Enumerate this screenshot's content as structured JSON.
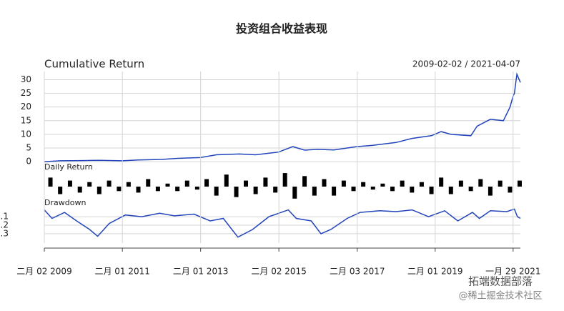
{
  "title": "投资组合收益表现",
  "watermarks": [
    "拓端数据部落",
    "@稀土掘金技术社区"
  ],
  "chart_data": [
    {
      "type": "line",
      "title": "Cumulative Return",
      "subtitle": "2009-02-02 / 2021-04-07",
      "color": "#2244bb",
      "grid": true,
      "xlim": [
        "2009-02-02",
        "2021-04-07"
      ],
      "ylim": [
        -0.5,
        33
      ],
      "yticks": [
        0,
        5,
        10,
        15,
        20,
        25,
        30
      ],
      "x": [
        "2009-02-02",
        "2009-06-30",
        "2010-01-29",
        "2010-06-30",
        "2011-01-31",
        "2011-06-30",
        "2012-01-31",
        "2012-06-29",
        "2013-01-31",
        "2013-06-28",
        "2014-01-30",
        "2014-06-30",
        "2015-01-30",
        "2015-06-12",
        "2015-09-30",
        "2016-01-29",
        "2016-06-30",
        "2017-01-26",
        "2017-06-30",
        "2018-01-31",
        "2018-06-29",
        "2018-12-28",
        "2019-03-29",
        "2019-06-28",
        "2019-12-31",
        "2020-02-28",
        "2020-06-30",
        "2020-10-30",
        "2020-12-31",
        "2021-01-29",
        "2021-02-10",
        "2021-03-05",
        "2021-04-07"
      ],
      "values": [
        0,
        0.3,
        0.4,
        0.5,
        0.3,
        0.6,
        0.8,
        1.2,
        1.5,
        2.5,
        2.8,
        2.5,
        3.5,
        5.5,
        4.2,
        4.5,
        4.3,
        5.5,
        6,
        7,
        8.5,
        9.5,
        11,
        10,
        9.5,
        13,
        15.5,
        15,
        20,
        24,
        25,
        32,
        29
      ]
    },
    {
      "type": "bar",
      "title": "Daily Return",
      "color": "#000000",
      "xlim": [
        "2009-02-02",
        "2021-04-07"
      ],
      "ylim": [
        -0.1,
        0.1
      ],
      "x": [
        "2009-03-31",
        "2009-06-30",
        "2009-09-30",
        "2009-12-31",
        "2010-03-31",
        "2010-06-30",
        "2010-09-30",
        "2010-12-31",
        "2011-03-31",
        "2011-06-30",
        "2011-09-30",
        "2011-12-30",
        "2012-03-30",
        "2012-06-29",
        "2012-09-28",
        "2012-12-31",
        "2013-03-29",
        "2013-06-28",
        "2013-09-30",
        "2013-12-31",
        "2014-03-31",
        "2014-06-30",
        "2014-09-30",
        "2014-12-31",
        "2015-03-31",
        "2015-06-30",
        "2015-09-30",
        "2015-12-31",
        "2016-03-31",
        "2016-06-30",
        "2016-09-30",
        "2016-12-30",
        "2017-03-31",
        "2017-06-30",
        "2017-09-29",
        "2017-12-29",
        "2018-03-30",
        "2018-06-29",
        "2018-09-28",
        "2018-12-28",
        "2019-03-29",
        "2019-06-28",
        "2019-09-30",
        "2019-12-31",
        "2020-03-31",
        "2020-06-30",
        "2020-09-30",
        "2020-12-31",
        "2021-03-31"
      ],
      "values": [
        0.06,
        -0.05,
        0.04,
        -0.04,
        0.03,
        -0.05,
        0.04,
        -0.03,
        0.03,
        -0.04,
        0.05,
        -0.03,
        0.02,
        -0.03,
        0.04,
        -0.02,
        0.05,
        -0.06,
        0.08,
        -0.07,
        0.04,
        -0.05,
        0.06,
        -0.04,
        0.09,
        -0.08,
        0.07,
        -0.06,
        0.05,
        -0.06,
        0.04,
        -0.03,
        0.03,
        -0.02,
        0.02,
        -0.03,
        0.04,
        -0.04,
        0.03,
        -0.05,
        0.06,
        -0.05,
        0.04,
        -0.03,
        0.05,
        -0.06,
        0.04,
        -0.04,
        0.04
      ]
    },
    {
      "type": "line",
      "title": "Drawdown",
      "color": "#2244bb",
      "grid": true,
      "xlim": [
        "2009-02-02",
        "2021-04-07"
      ],
      "ylim": [
        -0.41,
        0.01
      ],
      "yticks": [
        {
          "value": -0.1,
          "label": "-.1"
        },
        {
          "value": -0.2,
          "label": "-.2"
        },
        {
          "value": -0.3,
          "label": "-.3"
        }
      ],
      "xticks": [
        {
          "value": "2009-02-02",
          "label": "二月 02 2009"
        },
        {
          "value": "2011-02-01",
          "label": "二月 01 2011"
        },
        {
          "value": "2013-02-01",
          "label": "二月 01 2013"
        },
        {
          "value": "2015-02-02",
          "label": "二月 02 2015"
        },
        {
          "value": "2017-02-03",
          "label": "二月 03 2017"
        },
        {
          "value": "2019-02-01",
          "label": "二月 01 2019"
        },
        {
          "value": "2021-01-29",
          "label": "一月 29 2021"
        }
      ],
      "x": [
        "2009-02-02",
        "2009-04-15",
        "2009-08-10",
        "2009-12-01",
        "2010-04-01",
        "2010-06-15",
        "2010-10-01",
        "2011-03-01",
        "2011-08-01",
        "2012-01-15",
        "2012-06-01",
        "2012-12-01",
        "2013-05-01",
        "2013-09-01",
        "2014-01-15",
        "2014-06-01",
        "2014-11-01",
        "2015-05-01",
        "2015-07-15",
        "2015-12-01",
        "2016-03-01",
        "2016-06-01",
        "2016-11-01",
        "2017-03-01",
        "2017-09-01",
        "2018-02-01",
        "2018-07-01",
        "2018-12-01",
        "2019-05-01",
        "2019-09-01",
        "2020-01-15",
        "2020-03-20",
        "2020-07-01",
        "2020-12-01",
        "2021-02-10",
        "2021-03-10",
        "2021-04-07"
      ],
      "values": [
        -0.02,
        -0.12,
        -0.05,
        -0.15,
        -0.25,
        -0.33,
        -0.18,
        -0.08,
        -0.1,
        -0.06,
        -0.09,
        -0.07,
        -0.15,
        -0.12,
        -0.34,
        -0.25,
        -0.1,
        -0.02,
        -0.12,
        -0.15,
        -0.3,
        -0.25,
        -0.12,
        -0.05,
        -0.03,
        -0.04,
        -0.02,
        -0.1,
        -0.03,
        -0.15,
        -0.05,
        -0.12,
        -0.03,
        -0.04,
        -0.01,
        -0.1,
        -0.12
      ]
    }
  ]
}
